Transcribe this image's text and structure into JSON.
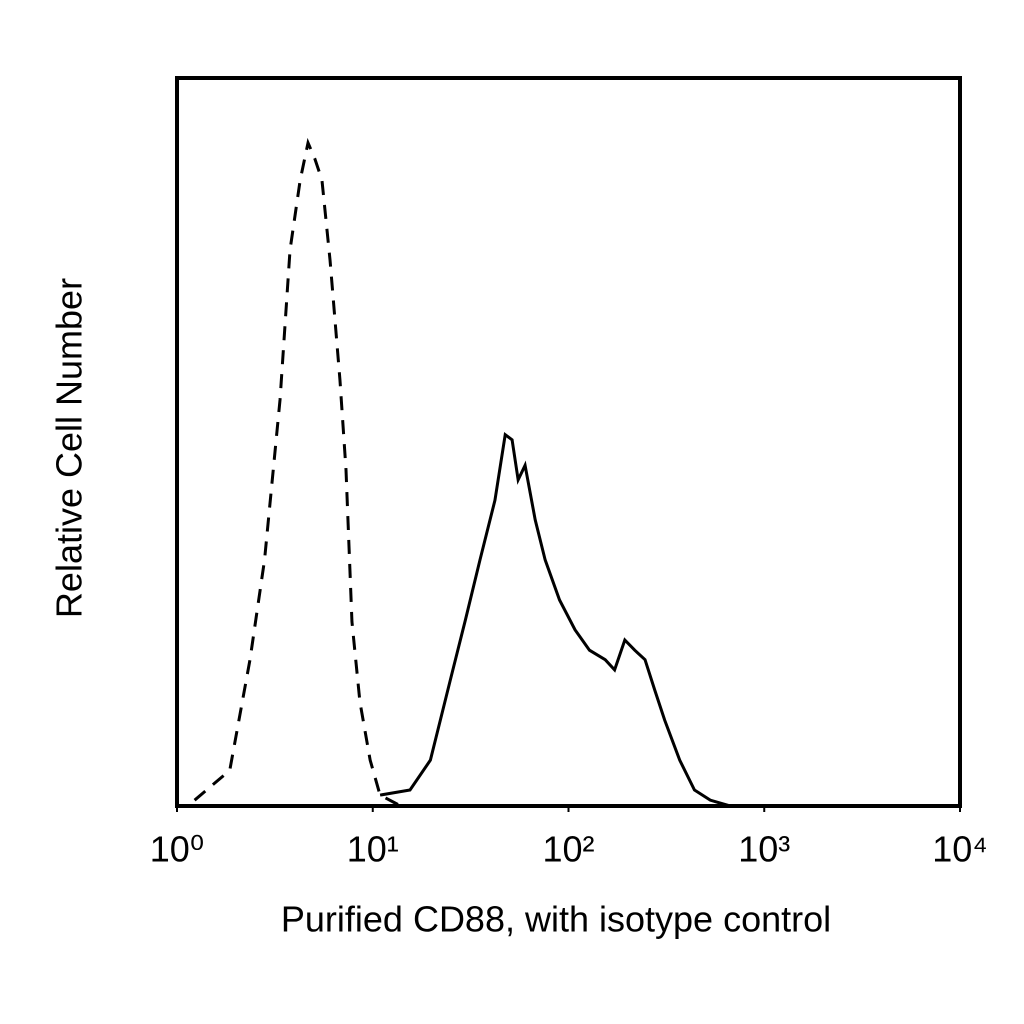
{
  "chart_data": {
    "type": "line",
    "x_label": "Purified CD88, with isotype control",
    "y_label": "Relative Cell Number",
    "xscale": "log",
    "xlim": [
      1,
      10000
    ],
    "xticks": [
      {
        "value": 1,
        "label": "10⁰"
      },
      {
        "value": 10,
        "label": "10¹"
      },
      {
        "value": 100,
        "label": "10²"
      },
      {
        "value": 1000,
        "label": "10³"
      },
      {
        "value": 10000,
        "label": "10⁴"
      }
    ],
    "ylim": [
      0,
      100
    ],
    "series": [
      {
        "color": "#000000",
        "style": "dashed",
        "x": [
          1.23,
          1.86,
          2.36,
          2.8,
          3.36,
          3.78,
          4.26,
          4.67,
          5.06,
          5.5,
          6.05,
          6.8,
          7.3,
          7.83,
          8.6,
          9.7,
          10.9,
          13.9
        ],
        "values": [
          0.8,
          4.9,
          20.1,
          33.8,
          55.8,
          76.4,
          86.0,
          91.1,
          88.9,
          86.0,
          75.0,
          58.5,
          46.2,
          25.3,
          14.3,
          6.3,
          1.5,
          0
        ]
      },
      {
        "color": "#000000",
        "style": "solid",
        "x": [
          10.9,
          15.5,
          19.7,
          24.9,
          29.7,
          35.3,
          42.1,
          47.5,
          51.5,
          55.3,
          60,
          67.6,
          76,
          90,
          108,
          128,
          154,
          172,
          194,
          218,
          246,
          276,
          310,
          370,
          440,
          530,
          670
        ],
        "values": [
          1.5,
          2.2,
          6.3,
          17.3,
          25.5,
          33.8,
          42.0,
          51.0,
          50.3,
          44.8,
          46.8,
          39.3,
          33.8,
          28.3,
          24.2,
          21.4,
          20.1,
          18.7,
          22.8,
          21.4,
          20.1,
          15.9,
          11.8,
          6.3,
          2.2,
          0.8,
          0
        ]
      }
    ]
  }
}
